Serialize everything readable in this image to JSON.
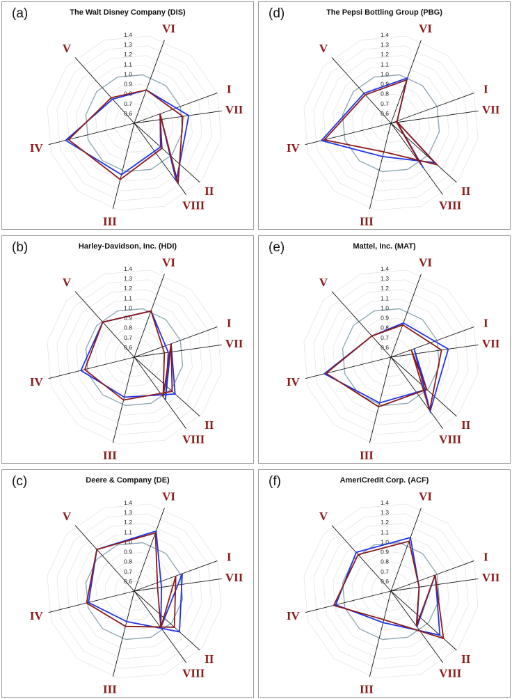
{
  "chart_data": [
    {
      "type": "radar",
      "label": "(a)",
      "title": "The Walt Disney Company (DIS)",
      "axes": [
        "I",
        "II",
        "III",
        "IV",
        "V",
        "VI",
        "VII",
        "VIII"
      ],
      "ticks": [
        "0.6",
        "0.7",
        "0.8",
        "0.9",
        "1.0",
        "1.1",
        "1.2",
        "1.3",
        "1.4"
      ],
      "rlim": [
        0.5,
        1.4
      ],
      "series": [
        {
          "color": "#1f33e6",
          "values": [
            0.78,
            0.86,
            1.04,
            1.22,
            0.83,
            0.86,
            1.06,
            1.23
          ]
        },
        {
          "color": "#8b1a1a",
          "values": [
            0.78,
            0.88,
            1.09,
            1.19,
            0.85,
            0.86,
            1.0,
            1.26
          ]
        }
      ],
      "reference": {
        "color": "#90a8b4",
        "value": 1.0
      }
    },
    {
      "type": "radar",
      "label": "(b)",
      "title": "Harley-Davidson, Inc. (HDI)",
      "axes": [
        "I",
        "II",
        "III",
        "IV",
        "V",
        "VI",
        "VII",
        "VIII"
      ],
      "ticks": [
        "0.6",
        "0.7",
        "0.8",
        "0.9",
        "1.0",
        "1.1",
        "1.2",
        "1.3",
        "1.4"
      ],
      "rlim": [
        0.5,
        1.4
      ],
      "series": [
        {
          "color": "#1f33e6",
          "values": [
            0.9,
            1.06,
            0.92,
            1.06,
            0.98,
            1.0,
            0.85,
            1.04
          ]
        },
        {
          "color": "#8b1a1a",
          "values": [
            0.9,
            1.02,
            0.95,
            1.02,
            0.98,
            1.0,
            0.81,
            1.0
          ]
        }
      ],
      "reference": {
        "color": "#90a8b4",
        "value": 1.0
      }
    },
    {
      "type": "radar",
      "label": "(c)",
      "title": "Deere & Company (DE)",
      "axes": [
        "I",
        "II",
        "III",
        "IV",
        "V",
        "VI",
        "VII",
        "VIII"
      ],
      "ticks": [
        "0.6",
        "0.7",
        "0.8",
        "0.9",
        "1.0",
        "1.1",
        "1.2",
        "1.3",
        "1.4"
      ],
      "rlim": [
        0.5,
        1.4
      ],
      "series": [
        {
          "color": "#1f33e6",
          "values": [
            1.02,
            1.12,
            0.82,
            0.98,
            1.07,
            1.15,
            0.78,
            0.96
          ]
        },
        {
          "color": "#8b1a1a",
          "values": [
            0.95,
            1.05,
            0.87,
            1.0,
            1.07,
            1.13,
            0.74,
            0.96
          ]
        }
      ],
      "reference": {
        "color": "#90a8b4",
        "value": 1.0
      }
    },
    {
      "type": "radar",
      "label": "(d)",
      "title": "The Pepsi Bottling Group (PBG)",
      "axes": [
        "I",
        "II",
        "III",
        "IV",
        "V",
        "VI",
        "VII",
        "VIII"
      ],
      "ticks": [
        "0.6",
        "0.7",
        "0.8",
        "0.9",
        "1.0",
        "1.1",
        "1.2",
        "1.3",
        "1.4"
      ],
      "rlim": [
        0.5,
        1.4
      ],
      "series": [
        {
          "color": "#1f33e6",
          "values": [
            0.56,
            1.1,
            0.85,
            1.23,
            0.91,
            0.99,
            0.56,
            1.06
          ]
        },
        {
          "color": "#8b1a1a",
          "values": [
            0.56,
            1.13,
            0.8,
            1.2,
            0.89,
            0.97,
            0.56,
            1.02
          ]
        }
      ],
      "reference": {
        "color": "#90a8b4",
        "value": 1.0
      }
    },
    {
      "type": "radar",
      "label": "(e)",
      "title": "Mattel, Inc. (MAT)",
      "axes": [
        "I",
        "II",
        "III",
        "IV",
        "V",
        "VI",
        "VII",
        "VIII"
      ],
      "ticks": [
        "0.6",
        "0.7",
        "0.8",
        "0.9",
        "1.0",
        "1.1",
        "1.2",
        "1.3",
        "1.4"
      ],
      "rlim": [
        0.5,
        1.4
      ],
      "series": [
        {
          "color": "#1f33e6",
          "values": [
            0.75,
            0.99,
            0.98,
            1.2,
            0.79,
            0.87,
            1.09,
            1.18
          ]
        },
        {
          "color": "#8b1a1a",
          "values": [
            0.72,
            0.99,
            1.02,
            1.18,
            0.79,
            0.85,
            1.02,
            1.17
          ]
        }
      ],
      "reference": {
        "color": "#90a8b4",
        "value": 1.0
      }
    },
    {
      "type": "radar",
      "label": "(f)",
      "title": "AmeriCredit Corp. (ACF)",
      "axes": [
        "I",
        "II",
        "III",
        "IV",
        "V",
        "VI",
        "VII",
        "VIII"
      ],
      "ticks": [
        "0.6",
        "0.7",
        "0.8",
        "0.9",
        "1.0",
        "1.1",
        "1.2",
        "1.3",
        "1.4"
      ],
      "rlim": [
        0.5,
        1.4
      ],
      "series": [
        {
          "color": "#1f33e6",
          "values": [
            0.98,
            1.17,
            0.83,
            1.08,
            1.03,
            1.08,
            0.79,
            0.95
          ]
        },
        {
          "color": "#8b1a1a",
          "values": [
            0.98,
            1.22,
            0.8,
            1.1,
            1.0,
            1.04,
            0.79,
            0.94
          ]
        }
      ],
      "reference": {
        "color": "#90a8b4",
        "value": 1.0
      }
    }
  ]
}
